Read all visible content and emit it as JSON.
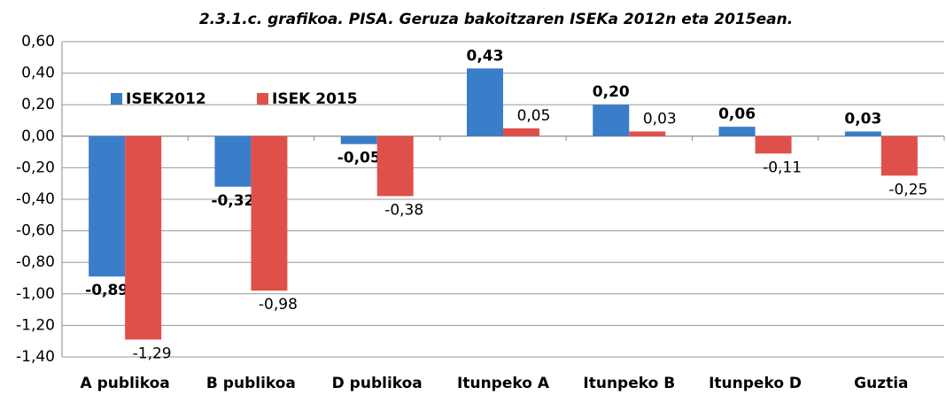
{
  "chart_data": {
    "type": "bar",
    "title": "2.3.1.c. grafikoa. PISA. Geruza bakoitzaren ISEKa 2012n eta 2015ean.",
    "categories": [
      "A publikoa",
      "B publikoa",
      "D publikoa",
      "Itunpeko A",
      "Itunpeko B",
      "Itunpeko D",
      "Guztia"
    ],
    "series": [
      {
        "name": "ISEK2012",
        "color": "#3a7dc9",
        "values": [
          -0.89,
          -0.32,
          -0.05,
          0.43,
          0.2,
          0.06,
          0.03
        ],
        "value_labels": [
          "-0,89",
          "-0,32",
          "-0,05",
          "0,43",
          "0,20",
          "0,06",
          "0,03"
        ]
      },
      {
        "name": "ISEK 2015",
        "color": "#e0504a",
        "values": [
          -1.29,
          -0.98,
          -0.38,
          0.05,
          0.03,
          -0.11,
          -0.25
        ],
        "value_labels": [
          "-1,29",
          "-0,98",
          "-0,38",
          "0,05",
          "0,03",
          "-0,11",
          "-0,25"
        ]
      }
    ],
    "ylim": [
      -1.4,
      0.6
    ],
    "yticks": [
      {
        "value": -1.4,
        "label": "-1,40"
      },
      {
        "value": -1.2,
        "label": "-1,20"
      },
      {
        "value": -1.0,
        "label": "-1,00"
      },
      {
        "value": -0.8,
        "label": "-0,80"
      },
      {
        "value": -0.6,
        "label": "-0,60"
      },
      {
        "value": -0.4,
        "label": "-0,40"
      },
      {
        "value": -0.2,
        "label": "-0,20"
      },
      {
        "value": 0,
        "label": "0,00"
      },
      {
        "value": 0.2,
        "label": "0,20"
      },
      {
        "value": 0.4,
        "label": "0,40"
      },
      {
        "value": 0.6,
        "label": "0,60"
      }
    ],
    "grid": true,
    "legend": "top-left"
  }
}
